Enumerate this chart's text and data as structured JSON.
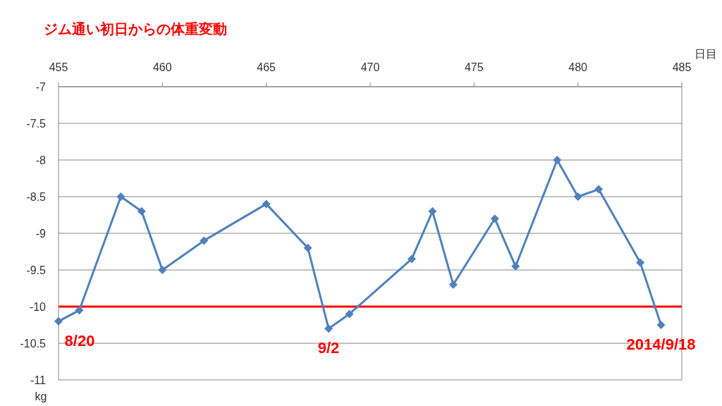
{
  "chart_data": {
    "type": "line",
    "title": "ジム通い初日からの体重変動",
    "xlabel": "日目",
    "ylabel": "kg",
    "x": [
      455,
      456,
      458,
      459,
      460,
      462,
      465,
      467,
      468,
      469,
      472,
      473,
      474,
      476,
      477,
      479,
      480,
      481,
      483,
      484
    ],
    "series": [
      {
        "color": "#4f81bd",
        "values": [
          -10.2,
          -10.05,
          -8.5,
          -8.7,
          -9.5,
          -9.1,
          -8.6,
          -9.2,
          -10.3,
          -10.1,
          -9.35,
          -8.7,
          -9.7,
          -8.8,
          -9.45,
          -8.0,
          -8.5,
          -8.4,
          -9.4,
          -10.25
        ]
      }
    ],
    "xlim": [
      455,
      485
    ],
    "xticks": [
      455,
      460,
      465,
      470,
      475,
      480,
      485
    ],
    "ylim": [
      -11,
      -7
    ],
    "yticks": [
      -11,
      -10.5,
      -10,
      -9.5,
      -9,
      -8.5,
      -8,
      -7.5,
      -7
    ],
    "grid": "y",
    "marker": "diamond",
    "line_style": "solid",
    "ref_lines": [
      {
        "axis": "y",
        "value": -10,
        "color": "#ff0000"
      }
    ],
    "annotations": [
      {
        "text": "8/20",
        "x": 455,
        "y": -10.2
      },
      {
        "text": "9/2",
        "x": 468,
        "y": -10.3
      },
      {
        "text": "2014/9/18",
        "x": 484,
        "y": -10.25
      }
    ]
  }
}
